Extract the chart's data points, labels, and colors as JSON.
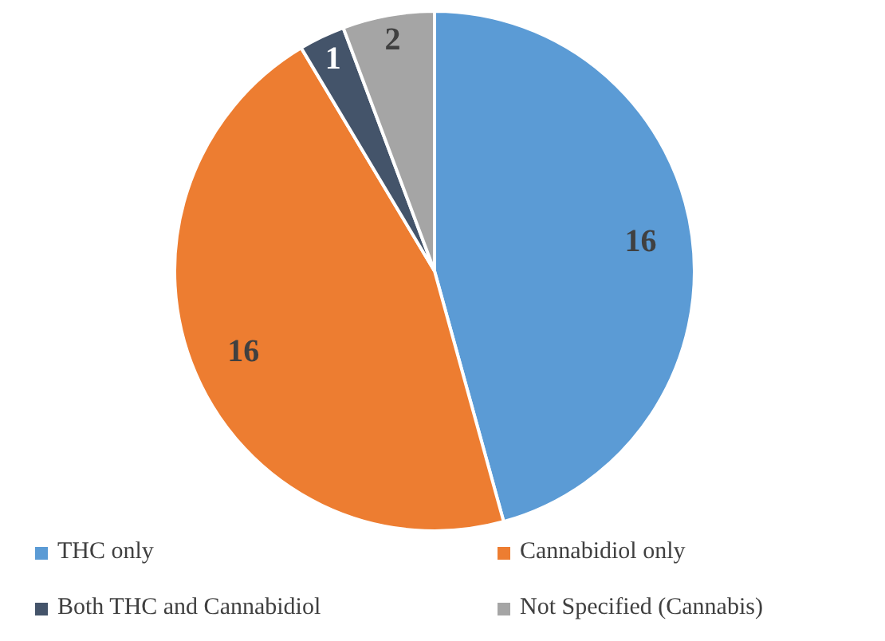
{
  "chart_data": {
    "type": "pie",
    "categories": [
      "THC only",
      "Cannabidiol only",
      "Both THC and Cannabidiol",
      "Not Specified (Cannabis)"
    ],
    "values": [
      16,
      16,
      1,
      2
    ],
    "colors": [
      "#5b9bd5",
      "#ed7d31",
      "#44546a",
      "#a5a5a5"
    ],
    "data_labels": true,
    "legend": "bottom"
  }
}
